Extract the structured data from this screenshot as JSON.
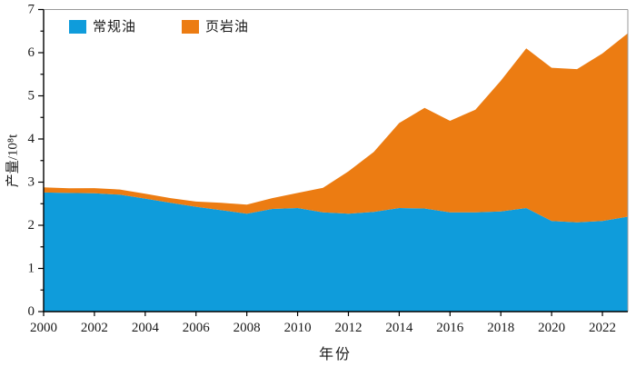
{
  "chart_data": {
    "type": "area",
    "stacked": true,
    "title": "",
    "xlabel": "年份",
    "ylabel": "产量/10⁸t",
    "xlim": [
      2000,
      2023
    ],
    "ylim": [
      0,
      7
    ],
    "grid": false,
    "legend_position": "top-left-inside",
    "x": [
      2000,
      2001,
      2002,
      2003,
      2004,
      2005,
      2006,
      2007,
      2008,
      2009,
      2010,
      2011,
      2012,
      2013,
      2014,
      2015,
      2016,
      2017,
      2018,
      2019,
      2020,
      2021,
      2022,
      2023
    ],
    "series": [
      {
        "name": "常规油",
        "color": "#0f9cdb",
        "values": [
          2.76,
          2.75,
          2.74,
          2.71,
          2.62,
          2.52,
          2.43,
          2.35,
          2.27,
          2.38,
          2.4,
          2.3,
          2.27,
          2.31,
          2.4,
          2.39,
          2.3,
          2.3,
          2.32,
          2.4,
          2.1,
          2.07,
          2.1,
          2.2
        ]
      },
      {
        "name": "页岩油",
        "color": "#ec7c12",
        "values": [
          0.12,
          0.11,
          0.12,
          0.12,
          0.11,
          0.11,
          0.12,
          0.17,
          0.21,
          0.25,
          0.35,
          0.57,
          0.98,
          1.39,
          1.97,
          2.33,
          2.12,
          2.38,
          3.03,
          3.7,
          3.55,
          3.55,
          3.88,
          4.25
        ]
      }
    ],
    "x_tick_labels": [
      "2000",
      "2002",
      "2004",
      "2006",
      "2008",
      "2010",
      "2012",
      "2014",
      "2016",
      "2018",
      "2020",
      "2022"
    ],
    "x_major_ticks": [
      2000,
      2002,
      2004,
      2006,
      2008,
      2010,
      2012,
      2014,
      2016,
      2018,
      2020,
      2022
    ],
    "y_tick_labels": [
      "0",
      "1",
      "2",
      "3",
      "4",
      "5",
      "6",
      "7"
    ],
    "y_major_tick_step": 1,
    "y_minor_tick_step": 0.5,
    "axis_color": "#000000",
    "box_color": "#999999",
    "tick_label_color": "#1a1a1a"
  }
}
